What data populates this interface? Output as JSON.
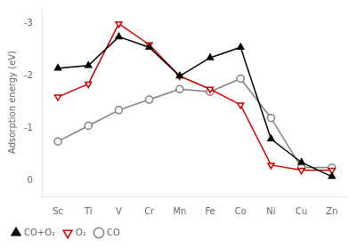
{
  "chart_data": {
    "type": "line",
    "categories": [
      "Sc",
      "Ti",
      "V",
      "Cr",
      "Mn",
      "Fe",
      "Co",
      "Ni",
      "Cu",
      "Zn"
    ],
    "series": [
      {
        "name": "CO+O₂",
        "color": "#000000",
        "marker": "filled_triangle_up",
        "line_style": "solid",
        "values": [
          -2.15,
          -2.2,
          -2.75,
          -2.55,
          -2.0,
          -2.35,
          -2.55,
          -0.8,
          -0.35,
          -0.08
        ]
      },
      {
        "name": "O₂",
        "color": "#cc0000",
        "marker": "open_triangle_down",
        "line_style": "solid",
        "values": [
          -1.6,
          -1.85,
          -3.0,
          -2.6,
          -2.0,
          -1.75,
          -1.45,
          -0.3,
          -0.2,
          -0.2
        ]
      },
      {
        "name": "CO",
        "color": "#808080",
        "marker": "open_circle",
        "line_style": "solid",
        "values": [
          -0.75,
          -1.05,
          -1.35,
          -1.55,
          -1.75,
          -1.7,
          -1.95,
          -1.2,
          -0.25,
          -0.25
        ]
      }
    ],
    "y_label": "Adsorption energy (eV)",
    "ylim": [
      0.3,
      -3.3
    ],
    "yticks": [
      -3,
      -2,
      -1,
      0
    ],
    "grid": false,
    "legend": "lower left"
  }
}
